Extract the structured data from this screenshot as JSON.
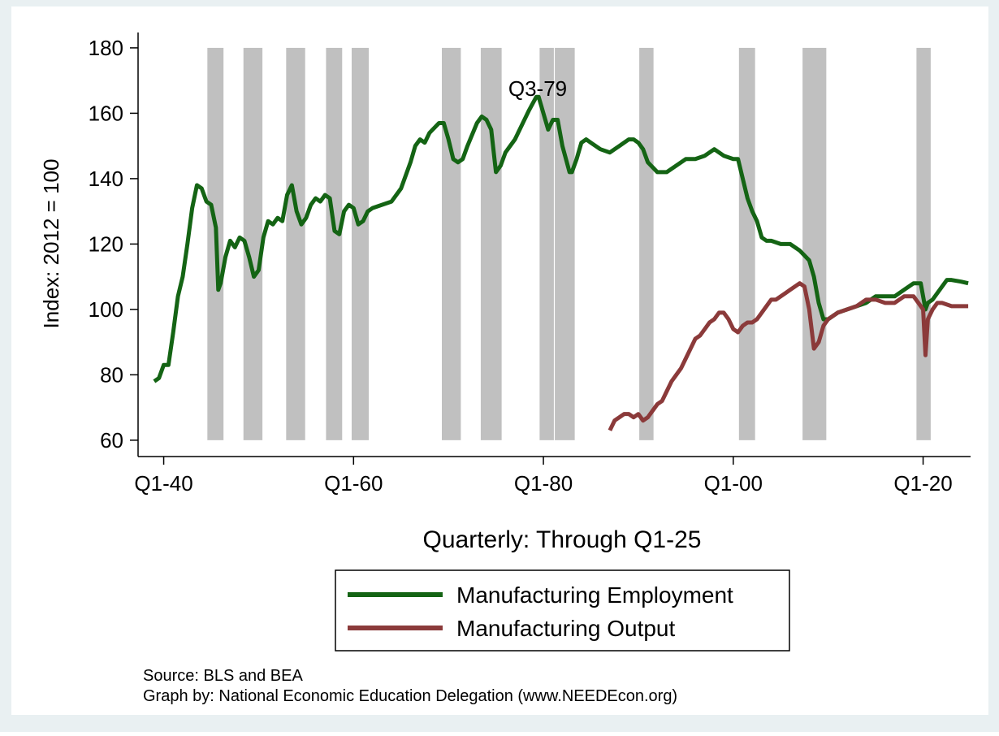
{
  "chart_data": {
    "type": "line",
    "xlabel": "Quarterly: Through Q1-25",
    "ylabel": "Index: 2012 = 100",
    "annotation": "Q3-79",
    "notes": [
      "Source: BLS and BEA",
      "Graph by: National Economic Education Delegation (www.NEEDEcon.org)"
    ],
    "xlim": [
      1937.3,
      2025
    ],
    "ylim": [
      55,
      184.7
    ],
    "xticks": [
      {
        "value": 1940,
        "label": "Q1-40"
      },
      {
        "value": 1960,
        "label": "Q1-60"
      },
      {
        "value": 1980,
        "label": "Q1-80"
      },
      {
        "value": 2000,
        "label": "Q1-00"
      },
      {
        "value": 2020,
        "label": "Q1-20"
      }
    ],
    "yticks": [
      60,
      80,
      100,
      120,
      140,
      160,
      180
    ],
    "recession_color": "#c0c0c0",
    "recessions": [
      [
        1944.6,
        1946.3
      ],
      [
        1948.4,
        1950.4
      ],
      [
        1952.9,
        1954.9
      ],
      [
        1957.1,
        1958.8
      ],
      [
        1959.8,
        1961.6
      ],
      [
        1969.3,
        1971.3
      ],
      [
        1973.4,
        1975.6
      ],
      [
        1979.6,
        1981.1
      ],
      [
        1981.2,
        1983.3
      ],
      [
        1990.1,
        1991.6
      ],
      [
        2000.6,
        2002.3
      ],
      [
        2007.3,
        2009.8
      ],
      [
        2019.3,
        2020.8
      ]
    ],
    "series": [
      {
        "name": "Manufacturing Employment",
        "color": "#146414",
        "x": [
          1939,
          1939.5,
          1940,
          1940.5,
          1941,
          1941.5,
          1942,
          1942.5,
          1943,
          1943.5,
          1944,
          1944.5,
          1945,
          1945.5,
          1945.75,
          1946,
          1946.5,
          1947,
          1947.5,
          1948,
          1948.5,
          1949,
          1949.5,
          1950,
          1950.5,
          1951,
          1951.5,
          1952,
          1952.5,
          1953,
          1953.5,
          1954,
          1954.5,
          1955,
          1955.5,
          1956,
          1956.5,
          1957,
          1957.5,
          1958,
          1958.5,
          1959,
          1959.5,
          1960,
          1960.5,
          1961,
          1961.5,
          1962,
          1963,
          1964,
          1965,
          1966,
          1966.5,
          1967,
          1967.5,
          1968,
          1969,
          1969.5,
          1970,
          1970.5,
          1971,
          1971.5,
          1972,
          1973,
          1973.5,
          1974,
          1974.5,
          1975,
          1975.5,
          1976,
          1976.5,
          1977,
          1978,
          1978.5,
          1979.25,
          1979.5,
          1980,
          1980.5,
          1981,
          1981.5,
          1982,
          1982.75,
          1983,
          1983.5,
          1984,
          1984.5,
          1985,
          1986,
          1987,
          1988,
          1989,
          1989.5,
          1990,
          1990.5,
          1991,
          1992,
          1993,
          1994,
          1995,
          1996,
          1997,
          1998,
          1998.5,
          1999,
          2000,
          2000.5,
          2001,
          2001.5,
          2002,
          2002.5,
          2003,
          2003.5,
          2004,
          2005,
          2006,
          2007,
          2008,
          2008.5,
          2009,
          2009.5,
          2010,
          2011,
          2012,
          2013,
          2014,
          2015,
          2016,
          2017,
          2018,
          2019,
          2019.75,
          2020.25,
          2020.5,
          2021,
          2022,
          2022.5,
          2023,
          2024,
          2024.75
        ],
        "values": [
          78,
          79,
          83,
          83,
          93,
          104,
          110,
          120,
          131,
          138,
          137,
          133,
          132,
          125,
          106,
          108,
          116,
          121,
          119,
          122,
          121,
          116,
          110,
          112,
          122,
          127,
          126,
          128,
          127,
          135,
          138,
          130,
          126,
          128,
          132,
          134,
          133,
          135,
          134,
          124,
          123,
          130,
          132,
          131,
          126,
          127,
          130,
          131,
          132,
          133,
          137,
          145,
          150,
          152,
          151,
          154,
          157,
          157,
          152,
          146,
          145,
          146,
          150,
          157,
          159,
          158,
          155,
          142,
          144,
          148,
          150,
          152,
          158,
          161,
          165,
          165,
          160,
          155,
          158,
          158,
          150,
          142,
          142,
          146,
          151,
          152,
          151,
          149,
          148,
          150,
          152,
          152,
          151,
          149,
          145,
          142,
          142,
          144,
          146,
          146,
          147,
          149,
          148,
          147,
          146,
          146,
          140,
          134,
          130,
          127,
          122,
          121,
          121,
          120,
          120,
          118,
          115,
          110,
          102,
          97,
          97,
          99,
          100,
          101,
          102,
          104,
          104,
          104,
          106,
          108,
          108,
          100,
          102,
          103,
          107,
          109,
          109,
          108.5,
          108
        ]
      },
      {
        "name": "Manufacturing Output",
        "color": "#8b3a3a",
        "x": [
          1987,
          1987.5,
          1988,
          1988.5,
          1989,
          1989.5,
          1990,
          1990.5,
          1991,
          1991.5,
          1992,
          1992.5,
          1993,
          1993.5,
          1994,
          1994.5,
          1995,
          1995.5,
          1996,
          1996.5,
          1997,
          1997.5,
          1998,
          1998.5,
          1999,
          1999.5,
          2000,
          2000.5,
          2001,
          2001.5,
          2002,
          2002.5,
          2003,
          2003.5,
          2004,
          2004.5,
          2005,
          2005.5,
          2006,
          2006.5,
          2007,
          2007.5,
          2008,
          2008.5,
          2009,
          2009.5,
          2010,
          2011,
          2012,
          2013,
          2014,
          2015,
          2016,
          2017,
          2018,
          2019,
          2019.5,
          2020,
          2020.25,
          2020.5,
          2021,
          2021.5,
          2022,
          2023,
          2024,
          2024.75
        ],
        "values": [
          63,
          66,
          67,
          68,
          68,
          67,
          68,
          66,
          67,
          69,
          71,
          72,
          75,
          78,
          80,
          82,
          85,
          88,
          91,
          92,
          94,
          96,
          97,
          99,
          99,
          97,
          94,
          93,
          95,
          96,
          96,
          97,
          99,
          101,
          103,
          103,
          104,
          105,
          106,
          107,
          108,
          107,
          100,
          88,
          90,
          95,
          97,
          99,
          100,
          101,
          103,
          103,
          102,
          102,
          104,
          104,
          102,
          100,
          86,
          97,
          100,
          102,
          102,
          101,
          101,
          101
        ]
      }
    ]
  }
}
